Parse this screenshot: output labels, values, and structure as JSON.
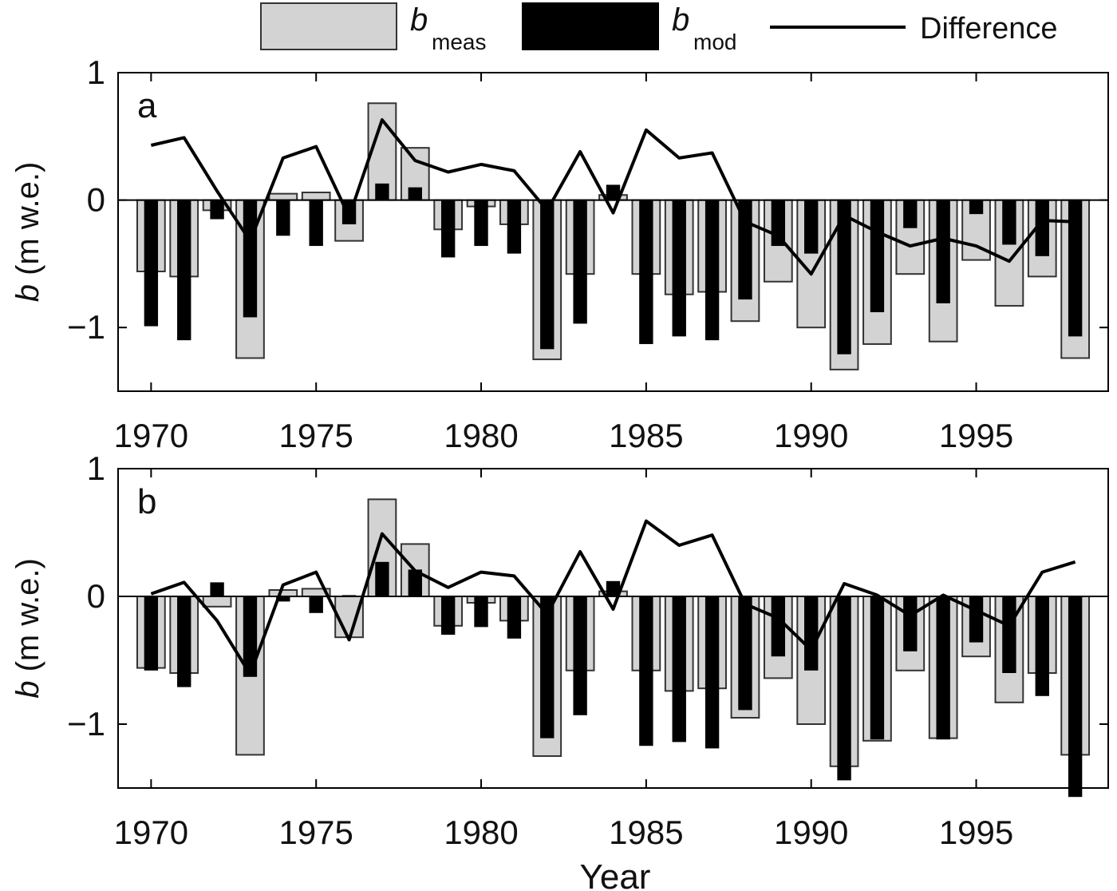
{
  "legend": {
    "meas": {
      "main": "b",
      "sub": "meas",
      "color": "#d3d3d3"
    },
    "mod": {
      "main": "b",
      "sub": "mod",
      "color": "#000000"
    },
    "diff": {
      "label": "Difference",
      "color": "#000000"
    }
  },
  "xlabel": "Year",
  "chart_data": [
    {
      "type": "bar",
      "panel_label": "a",
      "ylabel_var": "b",
      "ylabel_unit": "(m w.e.)",
      "xlim": [
        1969,
        1999
      ],
      "ylim": [
        -1.5,
        1
      ],
      "xticks": [
        1970,
        1975,
        1980,
        1985,
        1990,
        1995
      ],
      "yticks": [
        -1,
        0,
        1
      ],
      "ytick_labels": [
        "−1",
        "0",
        "1"
      ],
      "years": [
        1970,
        1971,
        1972,
        1973,
        1974,
        1975,
        1976,
        1977,
        1978,
        1979,
        1980,
        1981,
        1982,
        1983,
        1984,
        1985,
        1986,
        1987,
        1988,
        1989,
        1990,
        1991,
        1992,
        1993,
        1994,
        1995,
        1996,
        1997,
        1998
      ],
      "series": [
        {
          "name": "b meas",
          "kind": "bar",
          "values": [
            -0.56,
            -0.6,
            -0.08,
            -1.24,
            0.05,
            0.06,
            -0.32,
            0.76,
            0.41,
            -0.23,
            -0.05,
            -0.19,
            -1.25,
            -0.58,
            0.04,
            -0.58,
            -0.74,
            -0.72,
            -0.95,
            -0.64,
            -1.0,
            -1.33,
            -1.13,
            -0.58,
            -1.11,
            -0.47,
            -0.83,
            -0.6,
            -1.24
          ]
        },
        {
          "name": "b mod",
          "kind": "bar",
          "values": [
            -0.99,
            -1.1,
            -0.15,
            -0.92,
            -0.28,
            -0.36,
            -0.19,
            0.13,
            0.1,
            -0.45,
            -0.36,
            -0.42,
            -1.17,
            -0.97,
            0.12,
            -1.13,
            -1.07,
            -1.1,
            -0.78,
            -0.36,
            -0.42,
            -1.21,
            -0.88,
            -0.22,
            -0.81,
            -0.11,
            -0.35,
            -0.44,
            -1.07
          ]
        },
        {
          "name": "Difference",
          "kind": "line",
          "values": [
            0.43,
            0.49,
            0.07,
            -0.32,
            0.33,
            0.42,
            -0.13,
            0.63,
            0.31,
            0.22,
            0.28,
            0.23,
            -0.08,
            0.38,
            -0.1,
            0.55,
            0.33,
            0.37,
            -0.17,
            -0.28,
            -0.58,
            -0.12,
            -0.25,
            -0.36,
            -0.3,
            -0.36,
            -0.48,
            -0.16,
            -0.17
          ]
        }
      ]
    },
    {
      "type": "bar",
      "panel_label": "b",
      "ylabel_var": "b",
      "ylabel_unit": "(m w.e.)",
      "xlim": [
        1969,
        1999
      ],
      "ylim": [
        -1.5,
        1
      ],
      "xticks": [
        1970,
        1975,
        1980,
        1985,
        1990,
        1995
      ],
      "yticks": [
        -1,
        0,
        1
      ],
      "ytick_labels": [
        "−1",
        "0",
        "1"
      ],
      "years": [
        1970,
        1971,
        1972,
        1973,
        1974,
        1975,
        1976,
        1977,
        1978,
        1979,
        1980,
        1981,
        1982,
        1983,
        1984,
        1985,
        1986,
        1987,
        1988,
        1989,
        1990,
        1991,
        1992,
        1993,
        1994,
        1995,
        1996,
        1997,
        1998
      ],
      "series": [
        {
          "name": "b meas",
          "kind": "bar",
          "values": [
            -0.56,
            -0.6,
            -0.08,
            -1.24,
            0.05,
            0.06,
            -0.32,
            0.76,
            0.41,
            -0.23,
            -0.05,
            -0.19,
            -1.25,
            -0.58,
            0.04,
            -0.58,
            -0.74,
            -0.72,
            -0.95,
            -0.64,
            -1.0,
            -1.33,
            -1.13,
            -0.58,
            -1.11,
            -0.47,
            -0.83,
            -0.6,
            -1.24
          ]
        },
        {
          "name": "b mod",
          "kind": "bar",
          "values": [
            -0.58,
            -0.71,
            0.11,
            -0.63,
            -0.04,
            -0.13,
            0.01,
            0.27,
            0.21,
            -0.3,
            -0.24,
            -0.33,
            -1.11,
            -0.93,
            0.12,
            -1.17,
            -1.14,
            -1.19,
            -0.89,
            -0.47,
            -0.58,
            -1.44,
            -1.12,
            -0.43,
            -1.12,
            -0.36,
            -0.6,
            -0.78,
            -1.57
          ]
        },
        {
          "name": "Difference",
          "kind": "line",
          "values": [
            0.02,
            0.11,
            -0.19,
            -0.61,
            0.09,
            0.19,
            -0.34,
            0.49,
            0.2,
            0.07,
            0.19,
            0.16,
            -0.14,
            0.35,
            -0.1,
            0.59,
            0.4,
            0.48,
            -0.06,
            -0.17,
            -0.42,
            0.1,
            0.01,
            -0.15,
            0.01,
            -0.11,
            -0.23,
            0.19,
            0.27
          ]
        }
      ]
    }
  ]
}
